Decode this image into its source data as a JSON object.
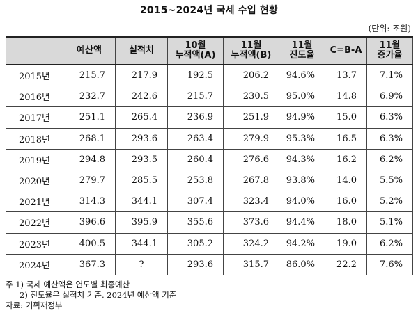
{
  "title": "2015~2024년 국세 수입 현황",
  "unit": "(단위: 조원)",
  "headers": [
    "",
    "예산액",
    "실적치",
    "10월\n누적액(A)",
    "11월\n누적액(B)",
    "11월\n진도율",
    "C=B-A",
    "11월\n증가율"
  ],
  "rows": [
    {
      "year": "2015년",
      "cells": [
        "215.7",
        "217.9",
        "192.5",
        "206.2",
        "94.6%",
        "13.7",
        "7.1%"
      ]
    },
    {
      "year": "2016년",
      "cells": [
        "232.7",
        "242.6",
        "215.7",
        "230.5",
        "95.0%",
        "14.8",
        "6.9%"
      ]
    },
    {
      "year": "2017년",
      "cells": [
        "251.1",
        "265.4",
        "236.9",
        "251.9",
        "94.9%",
        "15.0",
        "6.3%"
      ]
    },
    {
      "year": "2018년",
      "cells": [
        "268.1",
        "293.6",
        "263.4",
        "279.9",
        "95.3%",
        "16.5",
        "6.3%"
      ]
    },
    {
      "year": "2019년",
      "cells": [
        "294.8",
        "293.5",
        "260.4",
        "276.6",
        "94.3%",
        "16.2",
        "6.2%"
      ]
    },
    {
      "year": "2020년",
      "cells": [
        "279.7",
        "285.5",
        "253.8",
        "267.8",
        "93.8%",
        "14.0",
        "5.5%"
      ]
    },
    {
      "year": "2021년",
      "cells": [
        "314.3",
        "344.1",
        "307.4",
        "323.4",
        "94.0%",
        "16.0",
        "5.2%"
      ]
    },
    {
      "year": "2022년",
      "cells": [
        "396.6",
        "395.9",
        "355.6",
        "373.6",
        "94.4%",
        "18.0",
        "5.1%"
      ]
    },
    {
      "year": "2023년",
      "cells": [
        "400.5",
        "344.1",
        "305.2",
        "324.2",
        "94.2%",
        "19.0",
        "6.2%"
      ]
    },
    {
      "year": "2024년",
      "cells": [
        "367.3",
        "?",
        "293.6",
        "315.7",
        "86.0%",
        "22.2",
        "7.6%"
      ]
    }
  ],
  "notes": {
    "note1": "주 1) 국세 예산액은 연도별 최종예산",
    "note2": "2) 진도율은 실적치 기준. 2024년 예산액 기준",
    "source": "자료: 기획재정부"
  }
}
